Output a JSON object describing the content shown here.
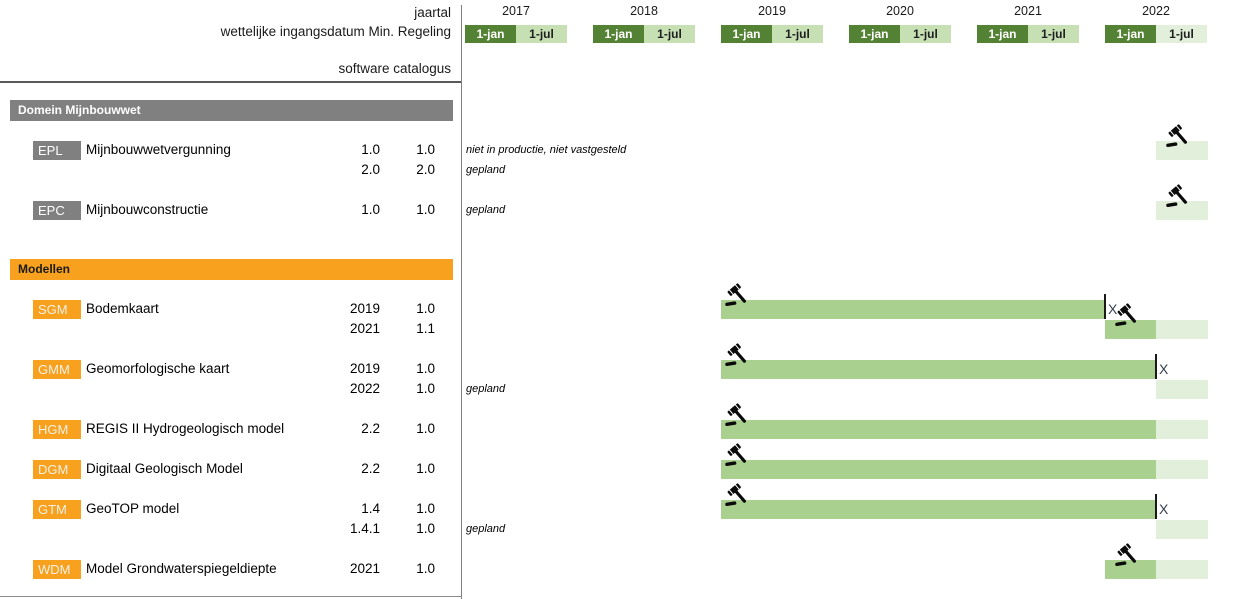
{
  "header": {
    "corner_labels": [
      "jaartal",
      "wettelijke ingangsdatum Min. Regeling",
      "software catalogus"
    ],
    "years": [
      "2017",
      "2018",
      "2019",
      "2020",
      "2021",
      "2022"
    ],
    "half_labels": [
      "1-jan",
      "1-jul"
    ]
  },
  "colors": {
    "dark_green": "#548235",
    "light_green": "#c6e0b4",
    "pale_green": "#e2efda",
    "bar_green": "#a9d08e",
    "gray": "#808080",
    "orange": "#F7A11E",
    "x_mark": "#333F50"
  },
  "sections": [
    {
      "title": "Domein Mijnbouwwet",
      "style": "gray",
      "rows": [
        {
          "code": "EPL",
          "name": "Mijnbouwwetvergunning",
          "lines": [
            [
              "1.0",
              "1.0"
            ],
            [
              "2.0",
              "2.0"
            ]
          ]
        },
        {
          "code": "EPC",
          "name": "Mijnbouwconstructie",
          "lines": [
            [
              "1.0",
              "1.0"
            ]
          ]
        }
      ]
    },
    {
      "title": "Modellen",
      "style": "orange",
      "rows": [
        {
          "code": "SGM",
          "name": "Bodemkaart",
          "lines": [
            [
              "2019",
              "1.0"
            ],
            [
              "2021",
              "1.1"
            ]
          ]
        },
        {
          "code": "GMM",
          "name": "Geomorfologische kaart",
          "lines": [
            [
              "2019",
              "1.0"
            ],
            [
              "2022",
              "1.0"
            ]
          ]
        },
        {
          "code": "HGM",
          "name": "REGIS II Hydrogeologisch model",
          "lines": [
            [
              "2.2",
              "1.0"
            ]
          ]
        },
        {
          "code": "DGM",
          "name": "Digitaal Geologisch Model",
          "lines": [
            [
              "2.2",
              "1.0"
            ]
          ]
        },
        {
          "code": "GTM",
          "name": "GeoTOP model",
          "lines": [
            [
              "1.4",
              "1.0"
            ],
            [
              "1.4.1",
              "1.0"
            ]
          ]
        },
        {
          "code": "WDM",
          "name": "Model Grondwaterspiegeldiepte",
          "lines": [
            [
              "2021",
              "1.0"
            ]
          ]
        }
      ]
    }
  ],
  "annotations": [
    {
      "row": "EPL.0",
      "text": "niet in productie, niet vastgesteld"
    },
    {
      "row": "EPL.1",
      "text": "gepland"
    },
    {
      "row": "EPC.0",
      "text": "gepland"
    },
    {
      "row": "GMM.1",
      "text": "gepland"
    },
    {
      "row": "GTM.1",
      "text": "gepland"
    }
  ],
  "chart_data": {
    "type": "gantt",
    "x_axis": {
      "years": [
        "2017",
        "2018",
        "2019",
        "2020",
        "2021",
        "2022"
      ],
      "subticks": [
        "1-jan",
        "1-jul"
      ]
    },
    "end_mark_label": "X",
    "bars": [
      {
        "row": "EPL.0",
        "model": "EPL",
        "version": "1.0",
        "gavel": true,
        "segments": [
          {
            "from": "2022-07",
            "to": "2023-01",
            "status": "planned"
          }
        ]
      },
      {
        "row": "EPC.0",
        "model": "EPC",
        "version": "1.0",
        "gavel": true,
        "segments": [
          {
            "from": "2022-07",
            "to": "2023-01",
            "status": "planned"
          }
        ]
      },
      {
        "row": "SGM.0",
        "model": "SGM",
        "version": "1.0",
        "gavel": true,
        "end_mark": true,
        "segments": [
          {
            "from": "2019-01",
            "to": "2022-01",
            "status": "active"
          }
        ]
      },
      {
        "row": "SGM.1",
        "model": "SGM",
        "version": "1.1",
        "gavel": true,
        "segments": [
          {
            "from": "2022-01",
            "to": "2022-07",
            "status": "active"
          },
          {
            "from": "2022-07",
            "to": "2023-01",
            "status": "planned"
          }
        ]
      },
      {
        "row": "GMM.0",
        "model": "GMM",
        "version": "1.0",
        "gavel": true,
        "end_mark": true,
        "segments": [
          {
            "from": "2019-01",
            "to": "2022-07",
            "status": "active"
          }
        ]
      },
      {
        "row": "GMM.1",
        "model": "GMM",
        "version": "1.0",
        "gavel": false,
        "segments": [
          {
            "from": "2022-07",
            "to": "2023-01",
            "status": "planned"
          }
        ]
      },
      {
        "row": "HGM.0",
        "model": "HGM",
        "version": "2.2",
        "gavel": true,
        "segments": [
          {
            "from": "2019-01",
            "to": "2022-07",
            "status": "active"
          },
          {
            "from": "2022-07",
            "to": "2023-01",
            "status": "planned"
          }
        ]
      },
      {
        "row": "DGM.0",
        "model": "DGM",
        "version": "2.2",
        "gavel": true,
        "segments": [
          {
            "from": "2019-01",
            "to": "2022-07",
            "status": "active"
          },
          {
            "from": "2022-07",
            "to": "2023-01",
            "status": "planned"
          }
        ]
      },
      {
        "row": "GTM.0",
        "model": "GTM",
        "version": "1.4",
        "gavel": true,
        "end_mark": true,
        "segments": [
          {
            "from": "2019-01",
            "to": "2022-07",
            "status": "active"
          }
        ]
      },
      {
        "row": "GTM.1",
        "model": "GTM",
        "version": "1.4.1",
        "gavel": false,
        "segments": [
          {
            "from": "2022-07",
            "to": "2023-01",
            "status": "planned"
          }
        ]
      },
      {
        "row": "WDM.0",
        "model": "WDM",
        "version": "1.0",
        "gavel": true,
        "segments": [
          {
            "from": "2022-01",
            "to": "2022-07",
            "status": "active"
          },
          {
            "from": "2022-07",
            "to": "2023-01",
            "status": "planned"
          }
        ]
      }
    ]
  }
}
